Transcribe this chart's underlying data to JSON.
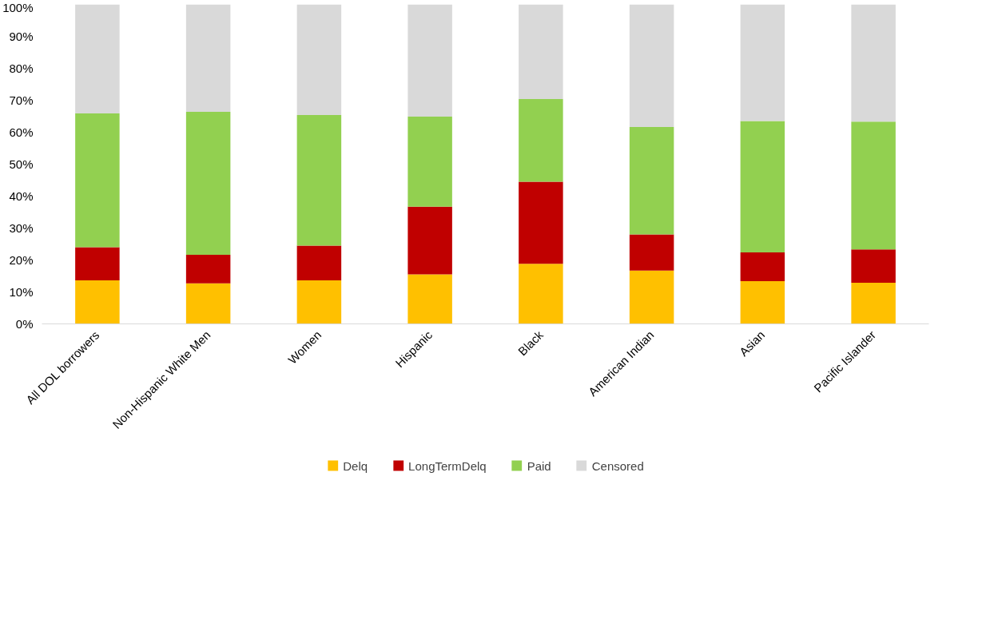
{
  "chart_data": {
    "type": "bar",
    "stacked": true,
    "categories": [
      "All DOL borrowers",
      "Non-Hispanic White Men",
      "Women",
      "Hispanic",
      "Black",
      "American Indian",
      "Asian",
      "Pacific Islander"
    ],
    "series": [
      {
        "name": "Delq",
        "color": "#ffc000",
        "values": [
          13.6,
          12.7,
          13.6,
          15.5,
          18.8,
          16.7,
          13.4,
          12.9
        ]
      },
      {
        "name": "LongTermDelq",
        "color": "#c00000",
        "values": [
          10.4,
          8.9,
          10.9,
          21.2,
          25.7,
          11.3,
          9.0,
          10.4
        ]
      },
      {
        "name": "Paid",
        "color": "#92d050",
        "values": [
          41.9,
          44.8,
          40.9,
          28.2,
          25.9,
          33.6,
          41.1,
          40.0
        ]
      },
      {
        "name": "Censored",
        "color": "#d9d9d9",
        "values": [
          34.1,
          33.6,
          34.6,
          35.1,
          29.6,
          38.4,
          36.5,
          36.7
        ]
      }
    ],
    "ylim": [
      0,
      100
    ],
    "yticks": [
      {
        "value": 0,
        "label": "0%"
      },
      {
        "value": 10,
        "label": "10%"
      },
      {
        "value": 20,
        "label": "20%"
      },
      {
        "value": 30,
        "label": "30%"
      },
      {
        "value": 40,
        "label": "40%"
      },
      {
        "value": 50,
        "label": "50%"
      },
      {
        "value": 60,
        "label": "60%"
      },
      {
        "value": 70,
        "label": "70%"
      },
      {
        "value": 80,
        "label": "80%"
      },
      {
        "value": 90,
        "label": "90%"
      },
      {
        "value": 100,
        "label": "100%"
      }
    ],
    "grid": false,
    "legend": "bottom"
  }
}
